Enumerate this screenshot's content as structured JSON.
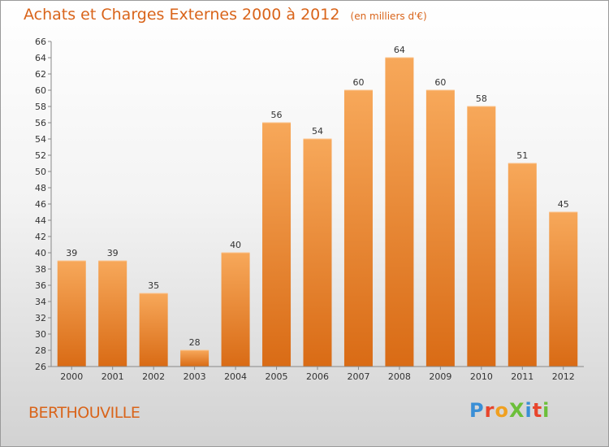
{
  "chart_data": {
    "type": "bar",
    "title": "Achats et Charges Externes 2000 à 2012",
    "subtitle": "(en milliers d'€)",
    "categories": [
      "2000",
      "2001",
      "2002",
      "2003",
      "2004",
      "2005",
      "2006",
      "2007",
      "2008",
      "2009",
      "2010",
      "2011",
      "2012"
    ],
    "values": [
      39,
      39,
      35,
      28,
      40,
      56,
      54,
      60,
      64,
      60,
      58,
      51,
      45
    ],
    "ylim": [
      26,
      66
    ],
    "ytick_step": 2,
    "grid": false,
    "bar_color": "#f0882a",
    "bar_color_top": "#f7a85a",
    "bar_color_bottom": "#d96b15"
  },
  "commune": "BERTHOUVILLE",
  "logo": {
    "text": "ProXiti",
    "letters": [
      {
        "ch": "P",
        "color": "#3a8fd6"
      },
      {
        "ch": "r",
        "color": "#e8452c"
      },
      {
        "ch": "o",
        "color": "#f0a020"
      },
      {
        "ch": "X",
        "color": "#6cbf3a"
      },
      {
        "ch": "i",
        "color": "#3a8fd6"
      },
      {
        "ch": "t",
        "color": "#e8452c"
      },
      {
        "ch": "i",
        "color": "#6cbf3a"
      }
    ]
  }
}
